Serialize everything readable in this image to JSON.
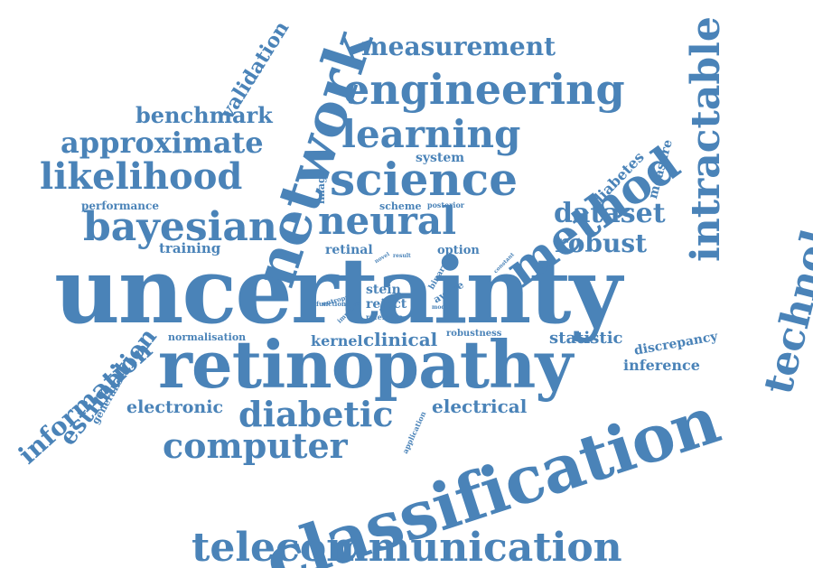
{
  "color": "#4a83b8",
  "words": [
    "uncertainty",
    "retinopathy",
    "classification",
    "telecommunication",
    "engineering",
    "network",
    "science",
    "learning",
    "measurement",
    "likelihood",
    "approximate",
    "benchmark",
    "bayesian",
    "neural",
    "method",
    "dataset",
    "robust",
    "intractable",
    "technology",
    "computer",
    "diabetic",
    "information",
    "estimation",
    "validation",
    "performance",
    "training",
    "system",
    "image",
    "scheme",
    "posterior",
    "retinal",
    "option",
    "diabetes",
    "measure",
    "stein",
    "reject",
    "referable",
    "kernel",
    "clinical",
    "robustness",
    "statistic",
    "discrepancy",
    "inference",
    "electronic",
    "electrical",
    "generalised",
    "normalisation",
    "entropy",
    "function",
    "improve",
    "binary",
    "aware",
    "model",
    "novel",
    "result",
    "constant",
    "application"
  ]
}
